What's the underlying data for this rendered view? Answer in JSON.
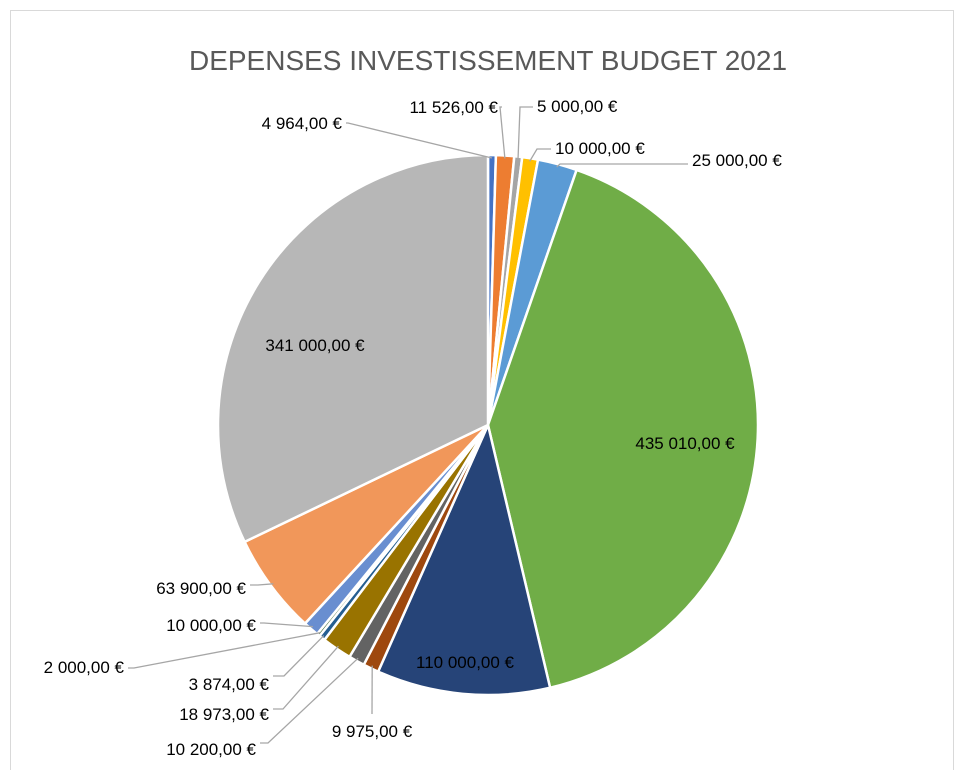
{
  "chart_data": {
    "type": "pie",
    "title": "DEPENSES INVESTISSEMENT BUDGET 2021",
    "slices": [
      {
        "label": "4 964,00 €",
        "value": 4964,
        "color": "#4472c4"
      },
      {
        "label": "11 526,00 €",
        "value": 11526,
        "color": "#ed7d31"
      },
      {
        "label": "5 000,00 €",
        "value": 5000,
        "color": "#a5a5a5"
      },
      {
        "label": "10 000,00 €",
        "value": 10000,
        "color": "#ffc000"
      },
      {
        "label": "25 000,00 €",
        "value": 25000,
        "color": "#5b9bd5"
      },
      {
        "label": "435 010,00 €",
        "value": 435010,
        "color": "#70ad47"
      },
      {
        "label": "110 000,00 €",
        "value": 110000,
        "color": "#264478"
      },
      {
        "label": "9 975,00 €",
        "value": 9975,
        "color": "#9e480e"
      },
      {
        "label": "10 200,00 €",
        "value": 10200,
        "color": "#636363"
      },
      {
        "label": "18 973,00 €",
        "value": 18973,
        "color": "#997300"
      },
      {
        "label": "3 874,00 €",
        "value": 3874,
        "color": "#255e91"
      },
      {
        "label": "2 000,00 €",
        "value": 2000,
        "color": "#43682b"
      },
      {
        "label": "10 000,00 €",
        "value": 10000,
        "color": "#698ed0"
      },
      {
        "label": "63 900,00 €",
        "value": 63900,
        "color": "#f1975a"
      },
      {
        "label": "341 000,00 €",
        "value": 341000,
        "color": "#b7b7b7"
      }
    ]
  }
}
